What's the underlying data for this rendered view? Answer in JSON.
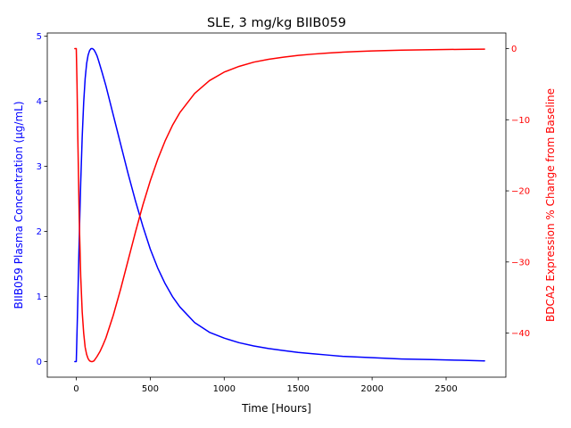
{
  "chart_data": {
    "type": "line",
    "title": "SLE, 3 mg/kg BIIB059",
    "xlabel": "Time [Hours]",
    "xlim": [
      -196,
      2904
    ],
    "xticks": [
      0,
      500,
      1000,
      1500,
      2000,
      2500
    ],
    "left_axis": {
      "label": "BIIB059 Plasma Concentration (µg/mL)",
      "color": "#0000ff",
      "ylim": [
        -0.24,
        5.05
      ],
      "ticks": [
        0,
        1,
        2,
        3,
        4,
        5
      ]
    },
    "right_axis": {
      "label": "BDCA2 Expression % Change from Baseline",
      "color": "#ff0000",
      "ylim": [
        -46.2,
        2.2
      ],
      "ticks": [
        -40,
        -30,
        -20,
        -10,
        0
      ]
    },
    "series": [
      {
        "axis": "left",
        "color": "#0000ff",
        "x": [
          -10,
          0,
          10,
          20,
          30,
          40,
          50,
          60,
          70,
          80,
          90,
          100,
          110,
          120,
          130,
          140,
          150,
          175,
          200,
          250,
          300,
          350,
          400,
          450,
          500,
          550,
          600,
          650,
          700,
          800,
          900,
          1000,
          1100,
          1200,
          1300,
          1400,
          1500,
          1600,
          1700,
          1800,
          1900,
          2000,
          2200,
          2400,
          2600,
          2760
        ],
        "y": [
          0,
          0,
          0.9,
          1.9,
          2.75,
          3.45,
          3.98,
          4.35,
          4.58,
          4.71,
          4.78,
          4.81,
          4.81,
          4.79,
          4.75,
          4.7,
          4.63,
          4.44,
          4.24,
          3.79,
          3.34,
          2.89,
          2.47,
          2.08,
          1.73,
          1.44,
          1.2,
          1.0,
          0.84,
          0.6,
          0.45,
          0.36,
          0.29,
          0.24,
          0.2,
          0.17,
          0.14,
          0.12,
          0.1,
          0.08,
          0.07,
          0.06,
          0.04,
          0.03,
          0.02,
          0.01
        ]
      },
      {
        "axis": "right",
        "color": "#ff0000",
        "x": [
          -10,
          0,
          5,
          10,
          20,
          30,
          40,
          50,
          60,
          70,
          80,
          90,
          100,
          110,
          120,
          130,
          140,
          160,
          180,
          200,
          250,
          300,
          350,
          400,
          450,
          500,
          550,
          600,
          650,
          700,
          800,
          900,
          1000,
          1100,
          1200,
          1300,
          1400,
          1500,
          1600,
          1700,
          1800,
          1900,
          2000,
          2200,
          2400,
          2600,
          2760
        ],
        "y": [
          0,
          0,
          -5,
          -12,
          -24,
          -32,
          -37,
          -40,
          -42,
          -43,
          -43.6,
          -43.9,
          -44,
          -44,
          -43.9,
          -43.6,
          -43.3,
          -42.6,
          -41.7,
          -40.7,
          -37.5,
          -33.8,
          -29.8,
          -25.8,
          -22,
          -18.6,
          -15.6,
          -13,
          -10.8,
          -9,
          -6.3,
          -4.5,
          -3.3,
          -2.5,
          -1.9,
          -1.5,
          -1.2,
          -0.95,
          -0.77,
          -0.62,
          -0.5,
          -0.4,
          -0.33,
          -0.22,
          -0.15,
          -0.1,
          -0.08
        ]
      }
    ]
  }
}
